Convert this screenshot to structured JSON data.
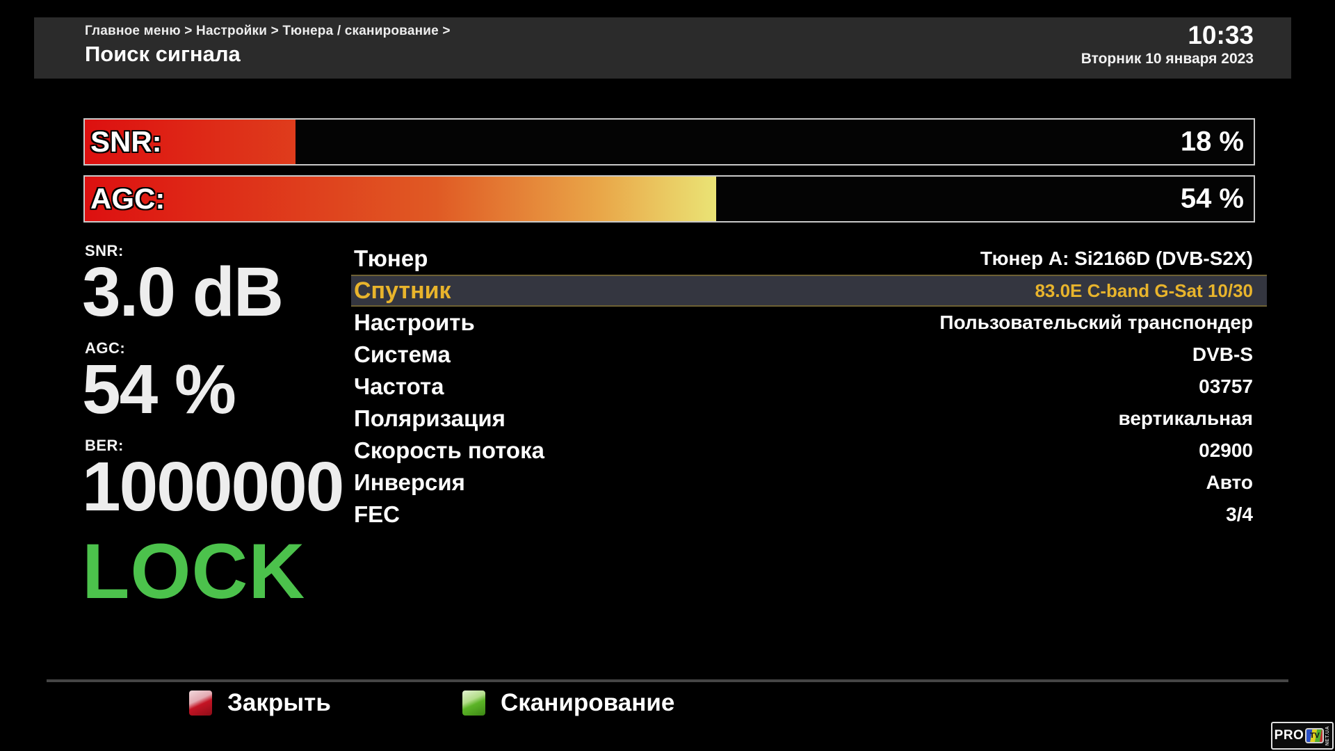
{
  "header": {
    "breadcrumb": "Главное меню > Настройки > Тюнера / сканирование >",
    "title": "Поиск сигнала",
    "time": "10:33",
    "date": "Вторник 10 января 2023"
  },
  "bars": {
    "snr": {
      "label": "SNR:",
      "value_text": "18 %",
      "percent": 18
    },
    "agc": {
      "label": "AGC:",
      "value_text": "54 %",
      "percent": 54
    }
  },
  "stats": {
    "snr_label": "SNR:",
    "snr_value": "3.0 dB",
    "agc_label": "AGC:",
    "agc_value": "54 %",
    "ber_label": "BER:",
    "ber_value": "1000000",
    "lock_text": "LOCK"
  },
  "menu": {
    "rows": [
      {
        "label": "Тюнер",
        "value": "Тюнер A: Si2166D (DVB-S2X)",
        "selected": false
      },
      {
        "label": "Спутник",
        "value": "83.0E C-band G-Sat 10/30",
        "selected": true
      },
      {
        "label": "Настроить",
        "value": "Пользовательский транспондер",
        "selected": false
      },
      {
        "label": "Система",
        "value": "DVB-S",
        "selected": false
      },
      {
        "label": "Частота",
        "value": "03757",
        "selected": false
      },
      {
        "label": "Поляризация",
        "value": "вертикальная",
        "selected": false
      },
      {
        "label": "Скорость потока",
        "value": "02900",
        "selected": false
      },
      {
        "label": "Инверсия",
        "value": "Авто",
        "selected": false
      },
      {
        "label": "FEC",
        "value": "3/4",
        "selected": false
      }
    ]
  },
  "footer": {
    "close_label": "Закрыть",
    "scan_label": "Сканирование"
  },
  "logo": {
    "pro": "PRO",
    "tv": "TV",
    "net": "NET.UA"
  },
  "colors": {
    "gold": "#e8b42c",
    "lock-green": "#4cc24c",
    "sel-bg": "#343640",
    "sel-border": "#6e6134",
    "red-key": "#c41424",
    "green-key": "#5cb427",
    "bar-border": "#c9c9c9"
  },
  "bar_gradient": [
    "#dd1010",
    "#e05a24",
    "#e9a648",
    "#ebf07e",
    "#9ade4e",
    "#3fb428"
  ],
  "bar_gradient_stops": [
    0,
    30,
    44,
    56,
    75,
    100
  ]
}
